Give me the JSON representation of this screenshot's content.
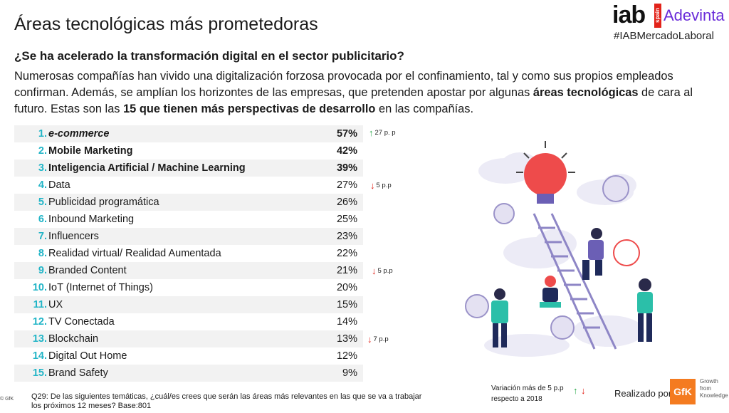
{
  "header": {
    "title": "Áreas tecnológicas más prometedoras",
    "logo_iab": "iab",
    "logo_spain": "spain",
    "logo_adevinta": "Adevinta",
    "hashtag": "#IABMercadoLaboral"
  },
  "question": "¿Se ha acelerado la transformación digital en el sector publicitario?",
  "intro": {
    "p1": "Numerosas compañías han vivido una digitalización forzosa provocada por el confinamiento, tal y como sus propios empleados confirman. Además, se amplían los horizontes de las empresas, que pretenden apostar por algunas ",
    "b1": "áreas tecnológicas",
    "p2": " de cara al futuro. Estas son las ",
    "b2": "15 que tienen más perspectivas de desarrollo",
    "p3": " en las compañías."
  },
  "chart_data": {
    "type": "table",
    "unit": "%",
    "rows": [
      {
        "rank": "1.",
        "label": "e-commerce",
        "value": 57,
        "change": "27 p. p",
        "direction": "up"
      },
      {
        "rank": "2.",
        "label": "Mobile Marketing",
        "value": 42
      },
      {
        "rank": "3.",
        "label": "Inteligencia Artificial / Machine Learning",
        "value": 39
      },
      {
        "rank": "4.",
        "label": "Data",
        "value": 27,
        "change": "5 p.p",
        "direction": "down"
      },
      {
        "rank": "5.",
        "label": "Publicidad programática",
        "value": 26
      },
      {
        "rank": "6.",
        "label": "Inbound Marketing",
        "value": 25
      },
      {
        "rank": "7.",
        "label": "Influencers",
        "value": 23
      },
      {
        "rank": "8.",
        "label": "Realidad virtual/ Realidad Aumentada",
        "value": 22
      },
      {
        "rank": "9.",
        "label": "Branded Content",
        "value": 21,
        "change": "5 p.p",
        "direction": "down"
      },
      {
        "rank": "10.",
        "label": "IoT (Internet of Things)",
        "value": 20
      },
      {
        "rank": "11.",
        "label": "UX",
        "value": 15
      },
      {
        "rank": "12.",
        "label": "TV Conectada",
        "value": 14
      },
      {
        "rank": "13.",
        "label": "Blockchain",
        "value": 13,
        "change": "7 p.p",
        "direction": "down"
      },
      {
        "rank": "14.",
        "label": "Digital Out Home",
        "value": 12
      },
      {
        "rank": "15.",
        "label": "Brand Safety",
        "value": 9
      }
    ]
  },
  "footnote": "Q29: De las siguientes temáticas, ¿cuál/es crees que serán las áreas más relevantes en las que se va a trabajar los próximos 12 meses? Base:801",
  "gfk_small": "© GfK",
  "legend": {
    "line1": "Variación más de 5  p.p",
    "line2": "respecto a 2018"
  },
  "realizado": "Realizado por",
  "gfk_logo": "GfK",
  "gfk_tagline": [
    "Growth",
    "from",
    "Knowledge"
  ],
  "colors": {
    "rank": "#22b5c7",
    "up": "#2aa84a",
    "down": "#e2231a",
    "adevinta": "#6a2bd9",
    "gfk": "#f47b20"
  }
}
